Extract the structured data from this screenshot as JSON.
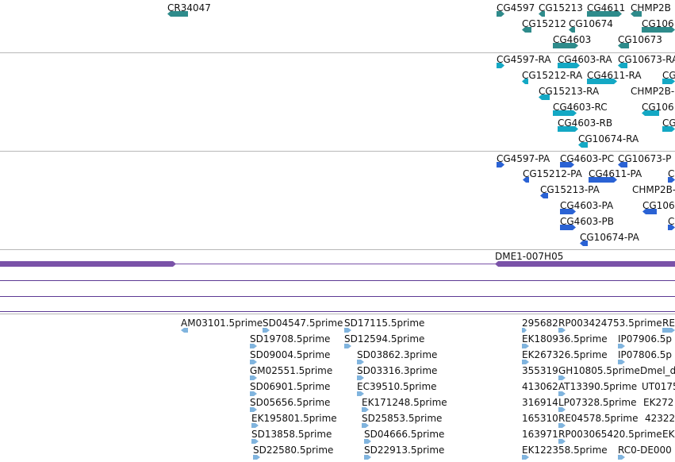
{
  "colors": {
    "gene": "#2e8b8b",
    "mrna": "#14a8c4",
    "protein": "#2a62d4",
    "clone": "#7a52a8",
    "est": "#80b4de",
    "track_line": "#5c3a94",
    "separator": "#b8b8b8"
  },
  "tracks": {
    "gene": {
      "features": [
        {
          "label": "CR34047",
          "dir": "left"
        },
        {
          "label": "CG4597",
          "dir": "right"
        },
        {
          "label": "CG15213",
          "dir": "left"
        },
        {
          "label": "CG4611",
          "dir": "right"
        },
        {
          "label": "CHMP2B",
          "dir": "left"
        },
        {
          "label": "CG15212",
          "dir": "left"
        },
        {
          "label": "CG10674",
          "dir": "left"
        },
        {
          "label": "CG106",
          "dir": "none"
        },
        {
          "label": "CG4603",
          "dir": "right"
        },
        {
          "label": "CG10673",
          "dir": "left"
        }
      ]
    },
    "mrna": {
      "features": [
        {
          "label": "CG4597-RA",
          "dir": "right"
        },
        {
          "label": "CG4603-RA",
          "dir": "right"
        },
        {
          "label": "CG10673-RA",
          "dir": "left"
        },
        {
          "label": "CG15212-RA",
          "dir": "left"
        },
        {
          "label": "CG4611-RA",
          "dir": "right"
        },
        {
          "label": "CG",
          "dir": "none"
        },
        {
          "label": "CG15213-RA",
          "dir": "left"
        },
        {
          "label": "CHMP2B-",
          "dir": "none"
        },
        {
          "label": "CG4603-RC",
          "dir": "right"
        },
        {
          "label": "CG106",
          "dir": "left"
        },
        {
          "label": "CG4603-RB",
          "dir": "right"
        },
        {
          "label": "CG",
          "dir": "none"
        },
        {
          "label": "CG10674-RA",
          "dir": "left"
        }
      ]
    },
    "protein": {
      "features": [
        {
          "label": "CG4597-PA",
          "dir": "right"
        },
        {
          "label": "CG4603-PC",
          "dir": "right"
        },
        {
          "label": "CG10673-P",
          "dir": "left"
        },
        {
          "label": "CG15212-PA",
          "dir": "left"
        },
        {
          "label": "CG4611-PA",
          "dir": "right"
        },
        {
          "label": "C",
          "dir": "none"
        },
        {
          "label": "CG15213-PA",
          "dir": "left"
        },
        {
          "label": "CHMP2B-",
          "dir": "none"
        },
        {
          "label": "CG4603-PA",
          "dir": "right"
        },
        {
          "label": "CG106",
          "dir": "left"
        },
        {
          "label": "CG4603-PB",
          "dir": "right"
        },
        {
          "label": "C",
          "dir": "none"
        },
        {
          "label": "CG10674-PA",
          "dir": "left"
        }
      ]
    },
    "clone": {
      "features": [
        {
          "label": "",
          "dir": "right"
        },
        {
          "label": "DME1-007H05",
          "dir": "left"
        }
      ]
    },
    "est": {
      "features": [
        {
          "label": "AM03101.5prime",
          "dir": "left"
        },
        {
          "label": "SD04547.5prime",
          "dir": "right"
        },
        {
          "label": "SD17115.5prime",
          "dir": "right"
        },
        {
          "label": "295682",
          "dir": "none"
        },
        {
          "label": "RP003424753.5prime",
          "dir": "right"
        },
        {
          "label": "RE",
          "dir": "none"
        },
        {
          "label": "SD19708.5prime",
          "dir": "right"
        },
        {
          "label": "SD12594.5prime",
          "dir": "right"
        },
        {
          "label": "EK180936.5prime",
          "dir": "right"
        },
        {
          "label": "IP07906.5p",
          "dir": "right"
        },
        {
          "label": "SD09004.5prime",
          "dir": "right"
        },
        {
          "label": "SD03862.3prime",
          "dir": "right"
        },
        {
          "label": "EK267326.5prime",
          "dir": "right"
        },
        {
          "label": "IP07806.5p",
          "dir": "right"
        },
        {
          "label": "GM02551.5prime",
          "dir": "right"
        },
        {
          "label": "SD03316.3prime",
          "dir": "right"
        },
        {
          "label": "355319",
          "dir": "none"
        },
        {
          "label": "GH10805.5prime",
          "dir": "right"
        },
        {
          "label": "Dmel_d",
          "dir": "none"
        },
        {
          "label": "SD06901.5prime",
          "dir": "right"
        },
        {
          "label": "EC39510.5prime",
          "dir": "right"
        },
        {
          "label": "413062",
          "dir": "none"
        },
        {
          "label": "AT13390.5prime",
          "dir": "right"
        },
        {
          "label": "UT0175",
          "dir": "none"
        },
        {
          "label": "SD05656.5prime",
          "dir": "right"
        },
        {
          "label": "EK171248.5prime",
          "dir": "right"
        },
        {
          "label": "316914",
          "dir": "none"
        },
        {
          "label": "LP07328.5prime",
          "dir": "right"
        },
        {
          "label": "EK272",
          "dir": "none"
        },
        {
          "label": "EK195801.5prime",
          "dir": "right"
        },
        {
          "label": "SD25853.5prime",
          "dir": "right"
        },
        {
          "label": "165310",
          "dir": "none"
        },
        {
          "label": "RE04578.5prime",
          "dir": "right"
        },
        {
          "label": "42322",
          "dir": "none"
        },
        {
          "label": "SD13858.5prime",
          "dir": "right"
        },
        {
          "label": "SD04666.5prime",
          "dir": "right"
        },
        {
          "label": "163971",
          "dir": "none"
        },
        {
          "label": "RP003065420.5prime",
          "dir": "right"
        },
        {
          "label": "EK",
          "dir": "none"
        },
        {
          "label": "SD22580.5prime",
          "dir": "right"
        },
        {
          "label": "SD22913.5prime",
          "dir": "right"
        },
        {
          "label": "EK122358.5prime",
          "dir": "right"
        },
        {
          "label": "RC0-DE000",
          "dir": "right"
        }
      ]
    }
  }
}
